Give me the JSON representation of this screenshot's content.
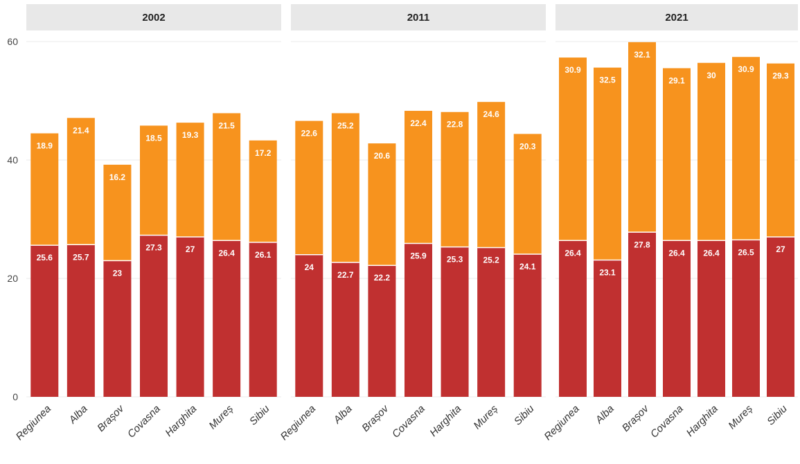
{
  "chart_data": {
    "type": "bar",
    "stacked": true,
    "facets": [
      "2002",
      "2011",
      "2021"
    ],
    "categories": [
      "Regiunea",
      "Alba",
      "Brașov",
      "Covasna",
      "Harghita",
      "Mureș",
      "Sibiu"
    ],
    "ylim": [
      0,
      60
    ],
    "yticks": [
      0,
      20,
      40,
      60
    ],
    "grid": true,
    "legend": "none",
    "colors": {
      "lower": "#c03030",
      "upper": "#f7931e",
      "facet_header": "#e8e8e8",
      "gridline": "#ebebeb"
    },
    "panels": [
      {
        "facet": "2002",
        "series": [
          {
            "values": [
              25.6,
              25.7,
              23,
              27.3,
              27,
              26.4,
              26.1
            ]
          },
          {
            "values": [
              18.9,
              21.4,
              16.2,
              18.5,
              19.3,
              21.5,
              17.2
            ]
          }
        ]
      },
      {
        "facet": "2011",
        "series": [
          {
            "values": [
              24,
              22.7,
              22.2,
              25.9,
              25.3,
              25.2,
              24.1
            ]
          },
          {
            "values": [
              22.6,
              25.2,
              20.6,
              22.4,
              22.8,
              24.6,
              20.3
            ]
          }
        ]
      },
      {
        "facet": "2021",
        "series": [
          {
            "values": [
              26.4,
              23.1,
              27.8,
              26.4,
              26.4,
              26.5,
              27
            ]
          },
          {
            "values": [
              30.9,
              32.5,
              32.1,
              29.1,
              30,
              30.9,
              29.3
            ]
          }
        ]
      }
    ]
  }
}
